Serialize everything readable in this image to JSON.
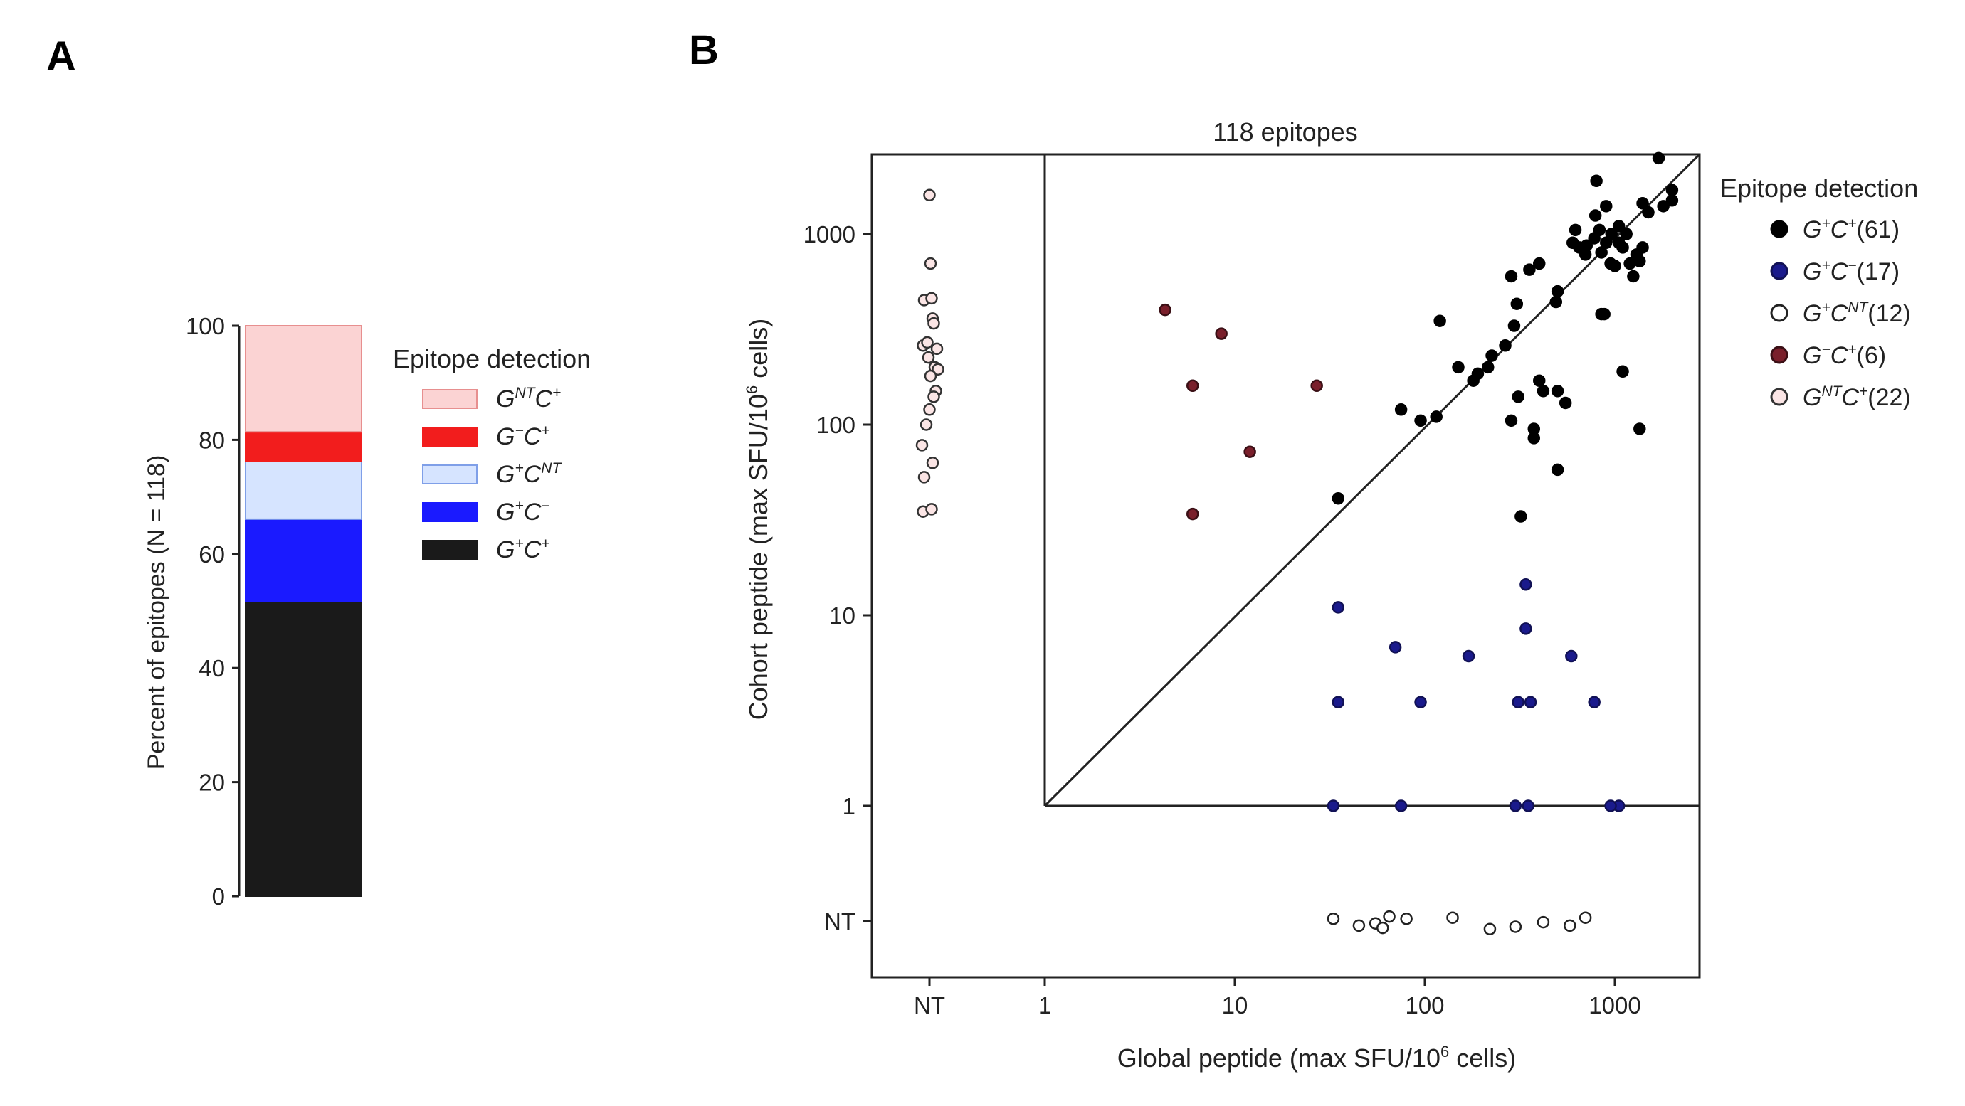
{
  "panels": {
    "a": "A",
    "b": "B"
  },
  "chart_data": [
    {
      "type": "bar",
      "stacked": true,
      "ylabel": "Percent of epitopes (N = 118)",
      "ylim": [
        0,
        100
      ],
      "yticks": [
        "0",
        "20",
        "40",
        "60",
        "80",
        "100"
      ],
      "legend_title": "Epitope detection",
      "legend_position": "right",
      "segments": [
        {
          "name": "G+C+",
          "sup1": "+",
          "sup2": "+",
          "value": 51.7,
          "color": "#1a1a1a",
          "edge": "#1a1a1a"
        },
        {
          "name": "G+C−",
          "sup1": "+",
          "sup2": "−",
          "value": 14.4,
          "color": "#1a1aff",
          "edge": "#1a1aff"
        },
        {
          "name": "G+CNT",
          "sup1": "+",
          "sup2": "NT",
          "value": 10.2,
          "color": "#d6e4ff",
          "edge": "#7f9fe8"
        },
        {
          "name": "G−C+",
          "sup1": "−",
          "sup2": "+",
          "value": 5.1,
          "color": "#f21d1d",
          "edge": "#f21d1d"
        },
        {
          "name": "GNTC+",
          "sup1": "NT",
          "sup2": "+",
          "value": 18.6,
          "color": "#fbd3d3",
          "edge": "#e78f8f"
        }
      ]
    },
    {
      "type": "scatter",
      "title": "118 epitopes",
      "xlabel": "Global peptide (max SFU/10^6 cells)",
      "ylabel": "Cohort peptide (max SFU/10^6 cells)",
      "xlabel_parts": [
        "Global peptide (max SFU/10",
        "6",
        " cells)"
      ],
      "ylabel_parts": [
        "Cohort peptide (max SFU/10",
        "6",
        " cells)"
      ],
      "scale": "log",
      "xticks": [
        "NT",
        "1",
        "10",
        "100",
        "1000"
      ],
      "yticks": [
        "NT",
        "1",
        "10",
        "100",
        "1000"
      ],
      "legend_title": "Epitope detection",
      "legend_position": "right",
      "series": [
        {
          "name": "G+C+(61)",
          "sup1": "+",
          "sup2": "+",
          "count": "(61)",
          "fill": "#000000",
          "stroke": "#000000",
          "points": [
            [
              35,
              41
            ],
            [
              75,
              120
            ],
            [
              95,
              105
            ],
            [
              115,
              110
            ],
            [
              120,
              350
            ],
            [
              150,
              200
            ],
            [
              180,
              170
            ],
            [
              190,
              185
            ],
            [
              215,
              200
            ],
            [
              225,
              230
            ],
            [
              265,
              260
            ],
            [
              285,
              600
            ],
            [
              295,
              330
            ],
            [
              305,
              430
            ],
            [
              285,
              105
            ],
            [
              310,
              140
            ],
            [
              355,
              650
            ],
            [
              375,
              95
            ],
            [
              375,
              85
            ],
            [
              400,
              700
            ],
            [
              400,
              170
            ],
            [
              420,
              150
            ],
            [
              490,
              440
            ],
            [
              500,
              500
            ],
            [
              500,
              150
            ],
            [
              550,
              130
            ],
            [
              600,
              900
            ],
            [
              620,
              1050
            ],
            [
              650,
              850
            ],
            [
              700,
              780
            ],
            [
              710,
              870
            ],
            [
              780,
              950
            ],
            [
              790,
              1250
            ],
            [
              800,
              1900
            ],
            [
              830,
              1050
            ],
            [
              850,
              800
            ],
            [
              900,
              900
            ],
            [
              880,
              380
            ],
            [
              950,
              700
            ],
            [
              900,
              1400
            ],
            [
              960,
              1000
            ],
            [
              1000,
              680
            ],
            [
              1050,
              900
            ],
            [
              1050,
              1100
            ],
            [
              1100,
              850
            ],
            [
              1150,
              1000
            ],
            [
              1200,
              700
            ],
            [
              1250,
              600
            ],
            [
              1300,
              780
            ],
            [
              1350,
              720
            ],
            [
              1400,
              1450
            ],
            [
              1400,
              850
            ],
            [
              1500,
              1300
            ],
            [
              1700,
              2500
            ],
            [
              1800,
              1400
            ],
            [
              2000,
              1700
            ],
            [
              2000,
              1500
            ],
            [
              1350,
              95
            ],
            [
              1100,
              190
            ],
            [
              500,
              58
            ],
            [
              320,
              33
            ],
            [
              850,
              380
            ]
          ]
        },
        {
          "name": "G+C−(17)",
          "sup1": "+",
          "sup2": "−",
          "count": "(17)",
          "fill": "#1a1a8c",
          "stroke": "#111155",
          "points": [
            [
              33,
              1
            ],
            [
              300,
              1
            ],
            [
              1050,
              1
            ],
            [
              35,
              3.5
            ],
            [
              95,
              3.5
            ],
            [
              310,
              3.5
            ],
            [
              360,
              3.5
            ],
            [
              780,
              3.5
            ],
            [
              35,
              11
            ],
            [
              70,
              6.8
            ],
            [
              170,
              6.1
            ],
            [
              340,
              14.5
            ],
            [
              340,
              8.5
            ],
            [
              590,
              6.1
            ],
            [
              950,
              1
            ],
            [
              350,
              1
            ],
            [
              75,
              1
            ]
          ]
        },
        {
          "name": "G+CNT(12)",
          "sup1": "+",
          "sup2": "NT",
          "count": "(12)",
          "fill": "#ffffff",
          "stroke": "#222222",
          "points": [
            [
              33,
              0.092
            ],
            [
              45,
              0.086
            ],
            [
              55,
              0.088
            ],
            [
              60,
              0.084
            ],
            [
              65,
              0.094
            ],
            [
              80,
              0.092
            ],
            [
              140,
              0.093
            ],
            [
              220,
              0.083
            ],
            [
              300,
              0.085
            ],
            [
              420,
              0.089
            ],
            [
              580,
              0.086
            ],
            [
              700,
              0.093
            ]
          ]
        },
        {
          "name": "G−C+(6)",
          "sup1": "−",
          "sup2": "+",
          "count": "(6)",
          "fill": "#7a1f2b",
          "stroke": "#3a0f15",
          "points": [
            [
              4.3,
              400
            ],
            [
              8.5,
              300
            ],
            [
              6,
              160
            ],
            [
              27,
              160
            ],
            [
              12,
              72
            ],
            [
              6,
              34
            ]
          ]
        },
        {
          "name": "GNTC+(22)",
          "sup1": "NT",
          "sup2": "+",
          "count": "(22)",
          "fill": "#fbe5e5",
          "stroke": "#333333",
          "points": [
            [
              0.1,
              1600
            ],
            [
              0.101,
              700
            ],
            [
              0.095,
              450
            ],
            [
              0.102,
              460
            ],
            [
              0.103,
              360
            ],
            [
              0.104,
              340
            ],
            [
              0.094,
              260
            ],
            [
              0.098,
              270
            ],
            [
              0.107,
              250
            ],
            [
              0.099,
              225
            ],
            [
              0.105,
              200
            ],
            [
              0.108,
              195
            ],
            [
              0.101,
              180
            ],
            [
              0.106,
              150
            ],
            [
              0.104,
              140
            ],
            [
              0.097,
              100
            ],
            [
              0.093,
              78
            ],
            [
              0.103,
              63
            ],
            [
              0.095,
              53
            ],
            [
              0.094,
              35
            ],
            [
              0.102,
              36
            ],
            [
              0.1,
              120
            ]
          ]
        }
      ]
    }
  ]
}
